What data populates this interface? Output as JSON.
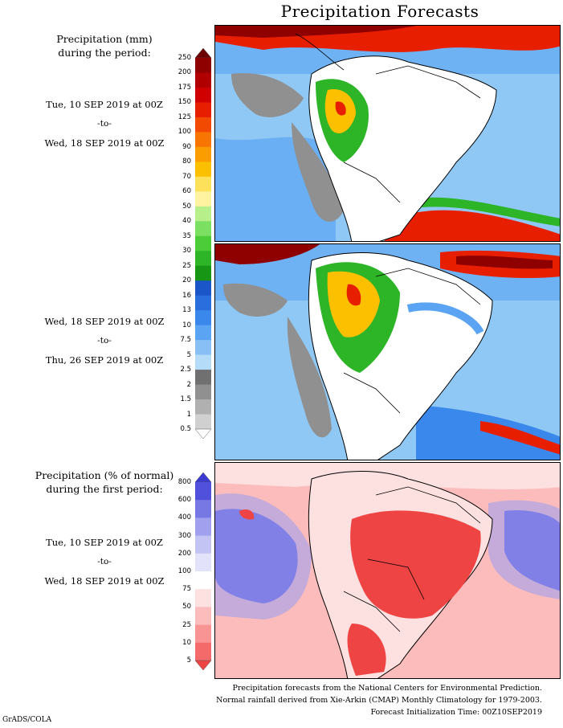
{
  "title": "Precipitation Forecasts",
  "precip_legend": {
    "heading": [
      "Precipitation (mm)",
      "during the period:"
    ],
    "ticks": [
      "250",
      "200",
      "175",
      "150",
      "125",
      "100",
      "90",
      "80",
      "70",
      "60",
      "50",
      "40",
      "35",
      "30",
      "25",
      "20",
      "16",
      "13",
      "10",
      "7.5",
      "5",
      "2.5",
      "2",
      "1.5",
      "1",
      "0.5"
    ],
    "colors": [
      "#6b0000",
      "#8f0000",
      "#b00000",
      "#d00000",
      "#e81e00",
      "#f24a00",
      "#f77500",
      "#fb9c00",
      "#fcc000",
      "#fde15a",
      "#fff2a0",
      "#b7f08b",
      "#7be061",
      "#4dcc3a",
      "#2db427",
      "#169614",
      "#1a56c8",
      "#2a6ede",
      "#3b88ec",
      "#5aa4f3",
      "#88c0f6",
      "#b4dcf9",
      "#707070",
      "#909090",
      "#b0b0b0",
      "#d0d0d0",
      "#ffffff"
    ]
  },
  "pct_legend": {
    "heading": [
      "Precipitation (% of normal)",
      "during the first period:"
    ],
    "ticks": [
      "800",
      "600",
      "400",
      "300",
      "200",
      "100",
      "75",
      "50",
      "25",
      "10",
      "5"
    ],
    "colors": [
      "#3b3bd0",
      "#5050dc",
      "#7878e4",
      "#a0a0ee",
      "#c4c4f4",
      "#e2e2fa",
      "#ffffff",
      "#fde0e0",
      "#fcbcbc",
      "#f99494",
      "#f46a6a",
      "#ee4444"
    ]
  },
  "period1": {
    "start": "Tue, 10 SEP 2019 at 00Z",
    "to": "-to-",
    "end": "Wed, 18 SEP 2019 at 00Z"
  },
  "period2": {
    "start": "Wed, 18 SEP 2019 at 00Z",
    "to": "-to-",
    "end": "Thu, 26 SEP 2019 at 00Z"
  },
  "period3": {
    "start": "Tue, 10 SEP 2019 at 00Z",
    "to": "-to-",
    "end": "Wed, 18 SEP 2019 at 00Z"
  },
  "footer": [
    "Precipitation forecasts from the National Centers for Environmental Prediction.",
    "Normal rainfall derived from Xie-Arkin (CMAP) Monthly Climatology for 1979-2003.",
    "Forecast Initialization Time: 00Z10SEP2019"
  ],
  "credit": "GrADS/COLA"
}
